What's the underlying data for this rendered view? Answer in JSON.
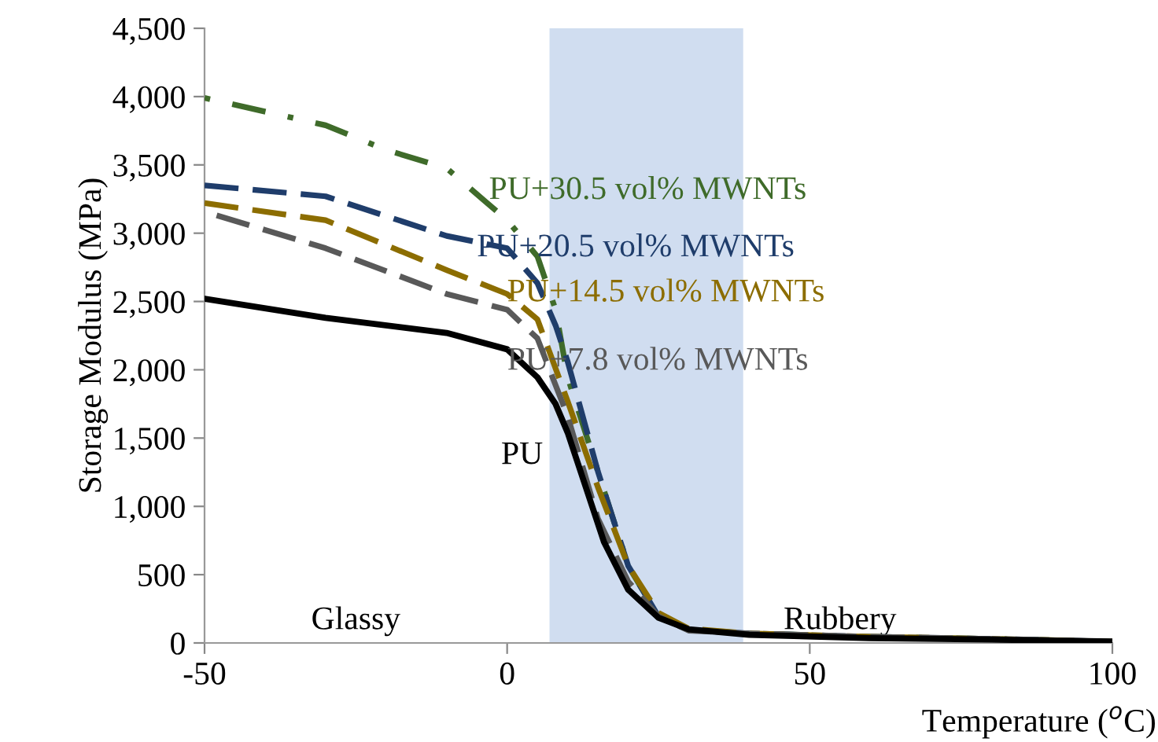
{
  "chart_data": {
    "type": "line",
    "xlabel": "Temperature ($^{o}$C)",
    "ylabel": "Storage Modulus (MPa)",
    "xlim": [
      -50,
      100
    ],
    "xticks": [
      -50,
      0,
      50,
      100
    ],
    "ylim": [
      0,
      4500
    ],
    "yticks": [
      0,
      500,
      {
        "value": 1000,
        "label": "1,000"
      },
      {
        "value": 1500,
        "label": "1,500"
      },
      {
        "value": 2000,
        "label": "2,000"
      },
      {
        "value": 2500,
        "label": "2,500"
      },
      {
        "value": 3000,
        "label": "3,000"
      },
      {
        "value": 3500,
        "label": "3,500"
      },
      {
        "value": 4000,
        "label": "4,000"
      },
      {
        "value": 4500,
        "label": "4,500"
      }
    ],
    "grid": false,
    "legend": false,
    "marker": "none",
    "bands": [
      {
        "axis": "x",
        "from": 7,
        "to": 39,
        "color": "#d0ddf0"
      }
    ],
    "annotations": [
      "Glassy",
      "Rubbery"
    ],
    "series": [
      {
        "name": "PU+30.5 vol% MWNTs",
        "color": "#3f6b2a",
        "line_style": "dotted",
        "x": [
          -50,
          -30,
          -20,
          -10,
          0,
          5,
          8,
          10,
          15,
          20,
          25,
          30,
          40,
          60,
          80,
          100
        ],
        "values": [
          3990,
          3790,
          3610,
          3475,
          3095,
          2830,
          2440,
          1945,
          1255,
          565,
          195,
          95,
          70,
          45,
          30,
          10
        ]
      },
      {
        "name": "PU+20.5 vol% MWNTs",
        "color": "#1f3d6b",
        "line_style": "dashed",
        "x": [
          -50,
          -30,
          -10,
          0,
          5,
          8,
          10,
          15,
          20,
          25,
          30,
          40,
          60,
          80,
          100
        ],
        "values": [
          3350,
          3270,
          2980,
          2890,
          2635,
          2325,
          2060,
          1255,
          565,
          195,
          95,
          70,
          45,
          30,
          10
        ]
      },
      {
        "name": "PU+14.5 vol% MWNTs",
        "color": "#8c6d00",
        "line_style": "dashed",
        "x": [
          -50,
          -30,
          -10,
          0,
          5,
          10,
          15,
          20,
          25,
          30,
          40,
          60,
          80,
          100
        ],
        "values": [
          3220,
          3095,
          2730,
          2555,
          2370,
          1770,
          1140,
          565,
          220,
          105,
          70,
          45,
          30,
          10
        ]
      },
      {
        "name": "PU+7.8 vol% MWNTs",
        "color": "#595959",
        "line_style": "dashed",
        "x": [
          -48,
          -30,
          -10,
          0,
          5,
          10,
          15,
          20,
          25,
          30,
          40,
          60,
          80,
          100
        ],
        "values": [
          3130,
          2890,
          2555,
          2440,
          2230,
          1660,
          910,
          450,
          195,
          90,
          70,
          45,
          30,
          10
        ]
      },
      {
        "name": "PU",
        "color": "#000000",
        "line_style": "solid",
        "x": [
          -50,
          -30,
          -10,
          0,
          5,
          8,
          10,
          13,
          16,
          20,
          25,
          30,
          40,
          60,
          80,
          100
        ],
        "values": [
          2520,
          2380,
          2270,
          2150,
          1945,
          1750,
          1540,
          1140,
          740,
          390,
          185,
          100,
          60,
          35,
          25,
          10
        ]
      }
    ]
  }
}
